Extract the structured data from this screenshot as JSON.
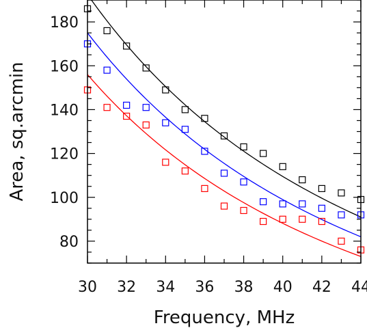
{
  "chart_data": {
    "type": "scatter",
    "title": "",
    "xlabel": "Frequency, MHz",
    "ylabel": "Area, sq.arcmin",
    "xlim": [
      30,
      44
    ],
    "ylim": [
      70,
      190
    ],
    "xticks": [
      30,
      32,
      34,
      36,
      38,
      40,
      42,
      44
    ],
    "yticks": [
      80,
      100,
      120,
      140,
      160,
      180
    ],
    "grid": false,
    "legend": "none",
    "series": [
      {
        "color": "#000000",
        "x": [
          30,
          31,
          32,
          33,
          34,
          35,
          36,
          37,
          38,
          39,
          40,
          41,
          42,
          43,
          44
        ],
        "y": [
          186,
          176,
          169,
          159,
          149,
          140,
          136,
          128,
          123,
          120,
          114,
          108,
          104,
          102,
          99
        ],
        "fit": {
          "x": [
            30.2,
            44
          ],
          "y": [
            190,
            91
          ],
          "exponent": -2
        }
      },
      {
        "color": "#0000ff",
        "x": [
          30,
          31,
          32,
          33,
          34,
          35,
          36,
          37,
          38,
          39,
          40,
          41,
          42,
          43,
          44
        ],
        "y": [
          170,
          158,
          142,
          141,
          134,
          131,
          121,
          111,
          107,
          98,
          97,
          97,
          95,
          92,
          92
        ],
        "fit": {
          "x": [
            30,
            44
          ],
          "y": [
            175,
            82
          ],
          "exponent": -2
        }
      },
      {
        "color": "#ff0000",
        "x": [
          30,
          31,
          32,
          33,
          34,
          35,
          36,
          37,
          38,
          39,
          40,
          41,
          42,
          43,
          44
        ],
        "y": [
          149,
          141,
          137,
          133,
          116,
          112,
          104,
          96,
          94,
          89,
          90,
          90,
          89,
          80,
          76
        ],
        "fit": {
          "x": [
            30,
            44
          ],
          "y": [
            156,
            73
          ],
          "exponent": -2
        }
      }
    ]
  }
}
